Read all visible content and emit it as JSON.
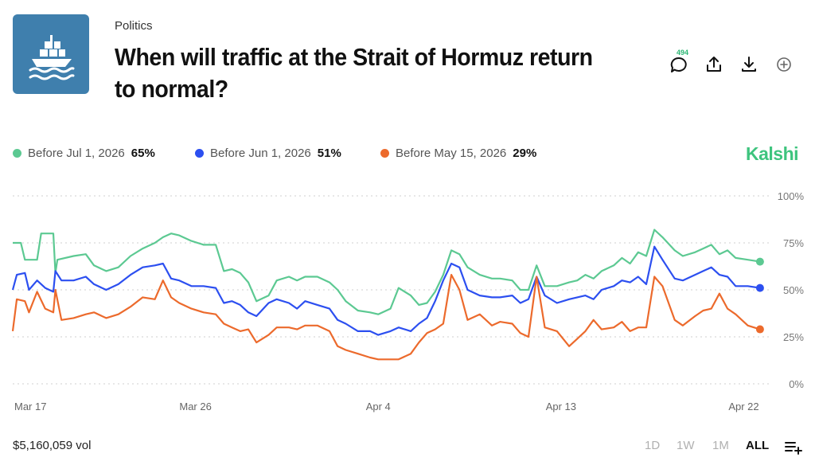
{
  "header": {
    "category": "Politics",
    "title": "When will traffic at the Strait of Hormuz return to normal?",
    "comment_count": "494"
  },
  "icons": {
    "thumbnail": "ship-icon",
    "comment": "comment-icon",
    "share": "share-icon",
    "download": "download-icon",
    "add": "add-circle-icon",
    "menu": "list-add-icon"
  },
  "brand": "Kalshi",
  "colors": {
    "series_jul": "#5cc992",
    "series_jun": "#2c4ff0",
    "series_may": "#ec6a2c",
    "brand": "#3ec47e",
    "thumbnail_bg": "#3f7fad"
  },
  "legend": [
    {
      "label": "Before Jul 1, 2026",
      "pct": "65%"
    },
    {
      "label": "Before Jun 1, 2026",
      "pct": "51%"
    },
    {
      "label": "Before May 15, 2026",
      "pct": "29%"
    }
  ],
  "footer": {
    "volume": "$5,160,059 vol",
    "ranges": [
      "1D",
      "1W",
      "1M",
      "ALL"
    ],
    "active_range": "ALL"
  },
  "chart_data": {
    "type": "line",
    "y_ticks": [
      "100%",
      "75%",
      "50%",
      "25%",
      "0%"
    ],
    "ylim": [
      0,
      100
    ],
    "x_ticks": [
      {
        "label": "Mar 17",
        "day": 0
      },
      {
        "label": "Mar 26",
        "day": 9
      },
      {
        "label": "Apr 4",
        "day": 18
      },
      {
        "label": "Apr 13",
        "day": 27
      },
      {
        "label": "Apr 22",
        "day": 36
      }
    ],
    "x_range_days": [
      0,
      37
    ],
    "grid": true,
    "legend_position": "top",
    "series": [
      {
        "name": "Before Jul 1, 2026",
        "color": "#5cc992",
        "final": 65,
        "points": [
          [
            0,
            75
          ],
          [
            0.4,
            75
          ],
          [
            0.6,
            66
          ],
          [
            1.2,
            66
          ],
          [
            1.4,
            80
          ],
          [
            2.0,
            80
          ],
          [
            2.1,
            59
          ],
          [
            2.2,
            66
          ],
          [
            3.0,
            68
          ],
          [
            3.6,
            69
          ],
          [
            4.0,
            63
          ],
          [
            4.6,
            60
          ],
          [
            5.2,
            62
          ],
          [
            5.8,
            68
          ],
          [
            6.4,
            72
          ],
          [
            7.0,
            75
          ],
          [
            7.4,
            78
          ],
          [
            7.8,
            80
          ],
          [
            8.2,
            79
          ],
          [
            8.8,
            76
          ],
          [
            9.4,
            74
          ],
          [
            10.0,
            74
          ],
          [
            10.4,
            60
          ],
          [
            10.8,
            61
          ],
          [
            11.2,
            59
          ],
          [
            11.6,
            54
          ],
          [
            12.0,
            44
          ],
          [
            12.6,
            47
          ],
          [
            13.0,
            55
          ],
          [
            13.6,
            57
          ],
          [
            14.0,
            55
          ],
          [
            14.4,
            57
          ],
          [
            15.0,
            57
          ],
          [
            15.6,
            54
          ],
          [
            16.0,
            50
          ],
          [
            16.4,
            44
          ],
          [
            17.0,
            39
          ],
          [
            17.6,
            38
          ],
          [
            18.0,
            37
          ],
          [
            18.6,
            40
          ],
          [
            19.0,
            51
          ],
          [
            19.6,
            47
          ],
          [
            20.0,
            42
          ],
          [
            20.4,
            43
          ],
          [
            20.8,
            49
          ],
          [
            21.2,
            58
          ],
          [
            21.6,
            71
          ],
          [
            22.0,
            69
          ],
          [
            22.4,
            62
          ],
          [
            23.0,
            58
          ],
          [
            23.6,
            56
          ],
          [
            24.0,
            56
          ],
          [
            24.6,
            55
          ],
          [
            25.0,
            50
          ],
          [
            25.4,
            50
          ],
          [
            25.8,
            63
          ],
          [
            26.2,
            52
          ],
          [
            26.8,
            52
          ],
          [
            27.4,
            54
          ],
          [
            27.8,
            55
          ],
          [
            28.2,
            58
          ],
          [
            28.6,
            56
          ],
          [
            29.0,
            60
          ],
          [
            29.6,
            63
          ],
          [
            30.0,
            67
          ],
          [
            30.4,
            64
          ],
          [
            30.8,
            70
          ],
          [
            31.2,
            68
          ],
          [
            31.6,
            82
          ],
          [
            32.0,
            78
          ],
          [
            32.6,
            71
          ],
          [
            33.0,
            68
          ],
          [
            33.6,
            70
          ],
          [
            34.0,
            72
          ],
          [
            34.4,
            74
          ],
          [
            34.8,
            69
          ],
          [
            35.2,
            71
          ],
          [
            35.6,
            67
          ],
          [
            36.2,
            66
          ],
          [
            36.8,
            65
          ]
        ]
      },
      {
        "name": "Before Jun 1, 2026",
        "color": "#2c4ff0",
        "final": 51,
        "points": [
          [
            0,
            50
          ],
          [
            0.2,
            58
          ],
          [
            0.6,
            59
          ],
          [
            0.8,
            50
          ],
          [
            1.2,
            55
          ],
          [
            1.6,
            51
          ],
          [
            2.0,
            49
          ],
          [
            2.1,
            60
          ],
          [
            2.4,
            55
          ],
          [
            3.0,
            55
          ],
          [
            3.6,
            57
          ],
          [
            4.0,
            53
          ],
          [
            4.6,
            50
          ],
          [
            5.2,
            53
          ],
          [
            5.8,
            58
          ],
          [
            6.4,
            62
          ],
          [
            7.0,
            63
          ],
          [
            7.4,
            64
          ],
          [
            7.8,
            56
          ],
          [
            8.2,
            55
          ],
          [
            8.8,
            52
          ],
          [
            9.4,
            52
          ],
          [
            10.0,
            51
          ],
          [
            10.4,
            43
          ],
          [
            10.8,
            44
          ],
          [
            11.2,
            42
          ],
          [
            11.6,
            38
          ],
          [
            12.0,
            36
          ],
          [
            12.6,
            43
          ],
          [
            13.0,
            45
          ],
          [
            13.6,
            43
          ],
          [
            14.0,
            40
          ],
          [
            14.4,
            44
          ],
          [
            15.0,
            42
          ],
          [
            15.6,
            40
          ],
          [
            16.0,
            34
          ],
          [
            16.4,
            32
          ],
          [
            17.0,
            28
          ],
          [
            17.6,
            28
          ],
          [
            18.0,
            26
          ],
          [
            18.6,
            28
          ],
          [
            19.0,
            30
          ],
          [
            19.6,
            28
          ],
          [
            20.0,
            32
          ],
          [
            20.4,
            35
          ],
          [
            20.8,
            44
          ],
          [
            21.2,
            55
          ],
          [
            21.6,
            64
          ],
          [
            22.0,
            62
          ],
          [
            22.4,
            50
          ],
          [
            23.0,
            47
          ],
          [
            23.6,
            46
          ],
          [
            24.0,
            46
          ],
          [
            24.6,
            47
          ],
          [
            25.0,
            43
          ],
          [
            25.4,
            45
          ],
          [
            25.8,
            57
          ],
          [
            26.2,
            47
          ],
          [
            26.8,
            43
          ],
          [
            27.4,
            45
          ],
          [
            27.8,
            46
          ],
          [
            28.2,
            47
          ],
          [
            28.6,
            45
          ],
          [
            29.0,
            50
          ],
          [
            29.6,
            52
          ],
          [
            30.0,
            55
          ],
          [
            30.4,
            54
          ],
          [
            30.8,
            57
          ],
          [
            31.2,
            53
          ],
          [
            31.6,
            73
          ],
          [
            32.0,
            66
          ],
          [
            32.6,
            56
          ],
          [
            33.0,
            55
          ],
          [
            33.6,
            58
          ],
          [
            34.0,
            60
          ],
          [
            34.4,
            62
          ],
          [
            34.8,
            58
          ],
          [
            35.2,
            57
          ],
          [
            35.6,
            52
          ],
          [
            36.2,
            52
          ],
          [
            36.8,
            51
          ]
        ]
      },
      {
        "name": "Before May 15, 2026",
        "color": "#ec6a2c",
        "final": 29,
        "points": [
          [
            0,
            28
          ],
          [
            0.2,
            45
          ],
          [
            0.6,
            44
          ],
          [
            0.8,
            38
          ],
          [
            1.2,
            49
          ],
          [
            1.6,
            40
          ],
          [
            2.0,
            38
          ],
          [
            2.1,
            50
          ],
          [
            2.4,
            34
          ],
          [
            3.0,
            35
          ],
          [
            3.6,
            37
          ],
          [
            4.0,
            38
          ],
          [
            4.6,
            35
          ],
          [
            5.2,
            37
          ],
          [
            5.8,
            41
          ],
          [
            6.4,
            46
          ],
          [
            7.0,
            45
          ],
          [
            7.4,
            55
          ],
          [
            7.8,
            46
          ],
          [
            8.2,
            43
          ],
          [
            8.8,
            40
          ],
          [
            9.4,
            38
          ],
          [
            10.0,
            37
          ],
          [
            10.4,
            32
          ],
          [
            10.8,
            30
          ],
          [
            11.2,
            28
          ],
          [
            11.6,
            29
          ],
          [
            12.0,
            22
          ],
          [
            12.6,
            26
          ],
          [
            13.0,
            30
          ],
          [
            13.6,
            30
          ],
          [
            14.0,
            29
          ],
          [
            14.4,
            31
          ],
          [
            15.0,
            31
          ],
          [
            15.6,
            28
          ],
          [
            16.0,
            20
          ],
          [
            16.4,
            18
          ],
          [
            17.0,
            16
          ],
          [
            17.6,
            14
          ],
          [
            18.0,
            13
          ],
          [
            18.6,
            13
          ],
          [
            19.0,
            13
          ],
          [
            19.6,
            16
          ],
          [
            20.0,
            22
          ],
          [
            20.4,
            27
          ],
          [
            20.8,
            29
          ],
          [
            21.2,
            32
          ],
          [
            21.6,
            58
          ],
          [
            22.0,
            50
          ],
          [
            22.4,
            34
          ],
          [
            23.0,
            37
          ],
          [
            23.6,
            31
          ],
          [
            24.0,
            33
          ],
          [
            24.6,
            32
          ],
          [
            25.0,
            27
          ],
          [
            25.4,
            25
          ],
          [
            25.8,
            57
          ],
          [
            26.2,
            30
          ],
          [
            26.8,
            28
          ],
          [
            27.4,
            20
          ],
          [
            27.8,
            24
          ],
          [
            28.2,
            28
          ],
          [
            28.6,
            34
          ],
          [
            29.0,
            29
          ],
          [
            29.6,
            30
          ],
          [
            30.0,
            33
          ],
          [
            30.4,
            28
          ],
          [
            30.8,
            30
          ],
          [
            31.2,
            30
          ],
          [
            31.6,
            57
          ],
          [
            32.0,
            52
          ],
          [
            32.6,
            34
          ],
          [
            33.0,
            31
          ],
          [
            33.6,
            36
          ],
          [
            34.0,
            39
          ],
          [
            34.4,
            40
          ],
          [
            34.8,
            48
          ],
          [
            35.2,
            40
          ],
          [
            35.6,
            37
          ],
          [
            36.2,
            31
          ],
          [
            36.8,
            29
          ]
        ]
      }
    ]
  }
}
